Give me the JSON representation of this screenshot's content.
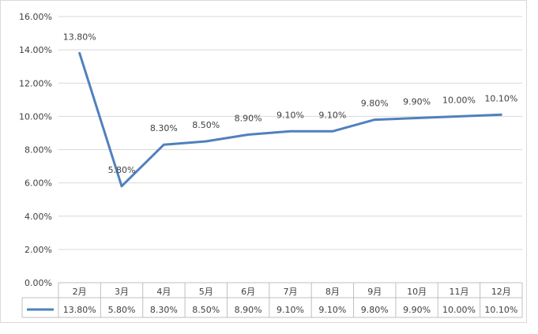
{
  "chart_data": {
    "type": "line",
    "title": "",
    "xlabel": "",
    "ylabel": "",
    "categories": [
      "2月",
      "3月",
      "4月",
      "5月",
      "6月",
      "7月",
      "8月",
      "9月",
      "10月",
      "11月",
      "12月"
    ],
    "series": [
      {
        "values": [
          13.8,
          5.8,
          8.3,
          8.5,
          8.9,
          9.1,
          9.1,
          9.8,
          9.9,
          10.0,
          10.1
        ],
        "color": "#4f81bd"
      }
    ],
    "data_labels": [
      "13.80%",
      "5.80%",
      "8.30%",
      "8.50%",
      "8.90%",
      "9.10%",
      "9.10%",
      "9.80%",
      "9.90%",
      "10.00%",
      "10.10%"
    ],
    "y_ticks": [
      "0.00%",
      "2.00%",
      "4.00%",
      "6.00%",
      "8.00%",
      "10.00%",
      "12.00%",
      "14.00%",
      "16.00%"
    ],
    "ylim": [
      0,
      16
    ],
    "grid": true,
    "legend": "data-table"
  }
}
